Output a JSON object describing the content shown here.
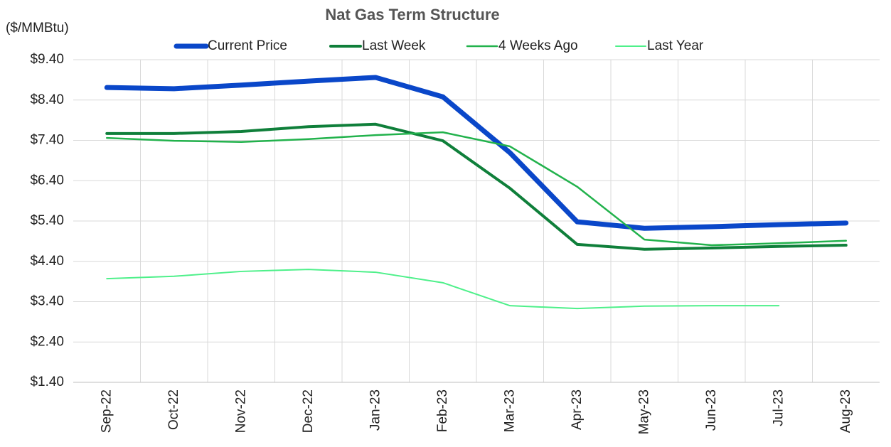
{
  "chart_data": {
    "type": "line",
    "title": "Nat Gas Term Structure",
    "y_label": "($/MMBtu)",
    "categories": [
      "Sep-22",
      "Oct-22",
      "Nov-22",
      "Dec-22",
      "Jan-23",
      "Feb-23",
      "Mar-23",
      "Apr-23",
      "May-23",
      "Jun-23",
      "Jul-23",
      "Aug-23"
    ],
    "series": [
      {
        "name": "Current Price",
        "color": "#0a47c9",
        "values": [
          8.71,
          8.68,
          8.77,
          8.87,
          8.96,
          8.48,
          7.09,
          5.38,
          5.22,
          5.26,
          5.31,
          5.35
        ]
      },
      {
        "name": "Last Week",
        "color": "#0f7f3a",
        "values": [
          7.57,
          7.57,
          7.62,
          7.74,
          7.8,
          7.39,
          6.21,
          4.82,
          4.7,
          4.73,
          4.77,
          4.8
        ]
      },
      {
        "name": "4 Weeks Ago",
        "color": "#22b24c",
        "values": [
          7.46,
          7.39,
          7.36,
          7.43,
          7.53,
          7.6,
          7.25,
          6.25,
          4.94,
          4.8,
          4.85,
          4.91
        ]
      },
      {
        "name": "Last Year",
        "color": "#4ef08a",
        "values": [
          3.97,
          4.03,
          4.15,
          4.2,
          4.13,
          3.87,
          3.3,
          3.23,
          3.29,
          3.3,
          3.3,
          null
        ]
      }
    ],
    "ylim": [
      1.4,
      9.4
    ],
    "yticks": [
      {
        "value": 1.4,
        "label": "$1.40"
      },
      {
        "value": 2.4,
        "label": "$2.40"
      },
      {
        "value": 3.4,
        "label": "$3.40"
      },
      {
        "value": 4.4,
        "label": "$4.40"
      },
      {
        "value": 5.4,
        "label": "$5.40"
      },
      {
        "value": 6.4,
        "label": "$6.40"
      },
      {
        "value": 7.4,
        "label": "$7.40"
      },
      {
        "value": 8.4,
        "label": "$8.40"
      },
      {
        "value": 9.4,
        "label": "$9.40"
      }
    ],
    "grid": true,
    "legend": "top"
  }
}
